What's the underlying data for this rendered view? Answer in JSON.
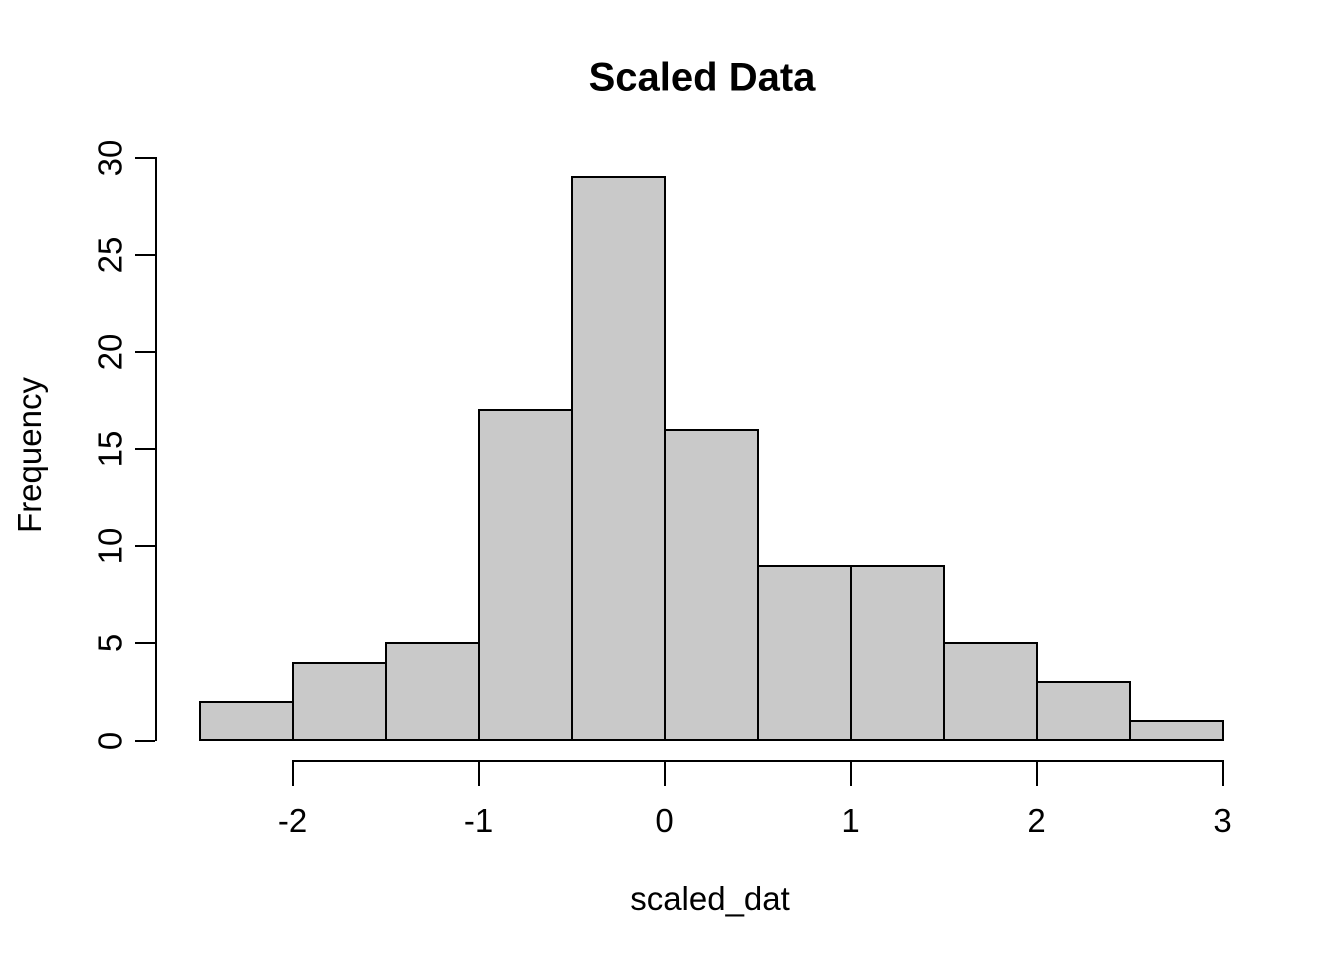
{
  "chart_data": {
    "type": "bar",
    "subtype": "histogram",
    "title": "Scaled Data",
    "xlabel": "scaled_dat",
    "ylabel": "Frequency",
    "bin_edges": [
      -2.5,
      -2.0,
      -1.5,
      -1.0,
      -0.5,
      0.0,
      0.5,
      1.0,
      1.5,
      2.0,
      2.5,
      3.0
    ],
    "counts": [
      2,
      4,
      5,
      17,
      29,
      16,
      9,
      9,
      5,
      3,
      1
    ],
    "total_count": 100,
    "x_tick_values": [
      -2,
      -1,
      0,
      1,
      2,
      3
    ],
    "x_tick_labels": [
      "-2",
      "-1",
      "0",
      "1",
      "2",
      "3"
    ],
    "y_tick_values": [
      0,
      5,
      10,
      15,
      20,
      25,
      30
    ],
    "y_tick_labels": [
      "0",
      "5",
      "10",
      "15",
      "20",
      "25",
      "30"
    ],
    "xlim": [
      -2.5,
      3.0
    ],
    "ylim": [
      0,
      30
    ],
    "grid": false,
    "legend_position": "none",
    "colors": {
      "background": "#FFFFFF",
      "bar_fill": "#C9C9C9",
      "bar_border": "#000000",
      "axis": "#000000",
      "text": "#000000"
    }
  }
}
